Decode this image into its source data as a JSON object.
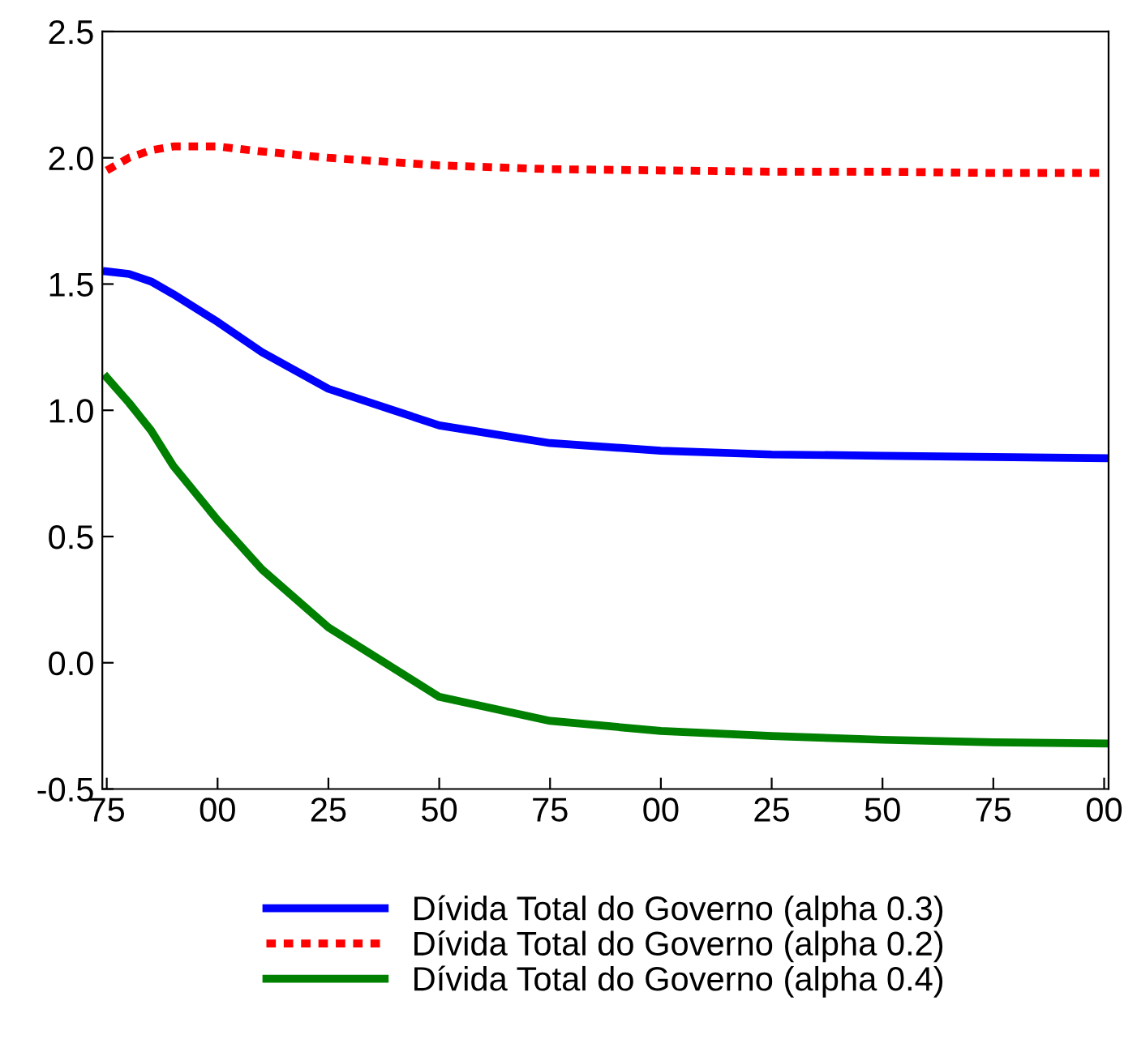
{
  "chart_data": {
    "type": "line",
    "x": [
      "1975",
      "1980",
      "1985",
      "1990",
      "2000",
      "2010",
      "2025",
      "2050",
      "2075",
      "2100",
      "2125",
      "2150",
      "2175",
      "2200"
    ],
    "xlim": [
      "1974",
      "2201"
    ],
    "xticks": [
      {
        "value": "1975",
        "label": "75"
      },
      {
        "value": "2000",
        "label": "00"
      },
      {
        "value": "2025",
        "label": "25"
      },
      {
        "value": "2050",
        "label": "50"
      },
      {
        "value": "2075",
        "label": "75"
      },
      {
        "value": "2100",
        "label": "00"
      },
      {
        "value": "2125",
        "label": "25"
      },
      {
        "value": "2150",
        "label": "50"
      },
      {
        "value": "2175",
        "label": "75"
      },
      {
        "value": "2200",
        "label": "00"
      }
    ],
    "ylim": [
      -0.5,
      2.5
    ],
    "yticks": [
      {
        "value": -0.5,
        "label": "-0.5"
      },
      {
        "value": 0,
        "label": "0.0"
      },
      {
        "value": 0.5,
        "label": "0.5"
      },
      {
        "value": 1.0,
        "label": "1.0"
      },
      {
        "value": 1.5,
        "label": "1.5"
      },
      {
        "value": 2.0,
        "label": "2.0"
      },
      {
        "value": 2.5,
        "label": "2.5"
      }
    ],
    "grid": false,
    "legend": "bottom",
    "series": [
      {
        "name": "Dívida Total do Governo (alpha 0.3)",
        "color": "#0000ff",
        "line_style": "solid",
        "values": [
          1.55,
          1.54,
          1.51,
          1.46,
          1.35,
          1.23,
          1.085,
          0.94,
          0.87,
          0.84,
          0.825,
          0.82,
          0.815,
          0.81
        ]
      },
      {
        "name": "Dívida Total do Governo (alpha 0.2)",
        "color": "#ff0000",
        "line_style": "dashed",
        "values": [
          1.95,
          2.0,
          2.03,
          2.045,
          2.045,
          2.025,
          2.0,
          1.97,
          1.955,
          1.95,
          1.945,
          1.945,
          1.94,
          1.94
        ]
      },
      {
        "name": "Dívida Total do Governo (alpha 0.4)",
        "color": "#008000",
        "line_style": "solid",
        "values": [
          1.13,
          1.03,
          0.92,
          0.78,
          0.565,
          0.37,
          0.14,
          -0.135,
          -0.23,
          -0.27,
          -0.29,
          -0.305,
          -0.315,
          -0.32
        ]
      }
    ]
  }
}
